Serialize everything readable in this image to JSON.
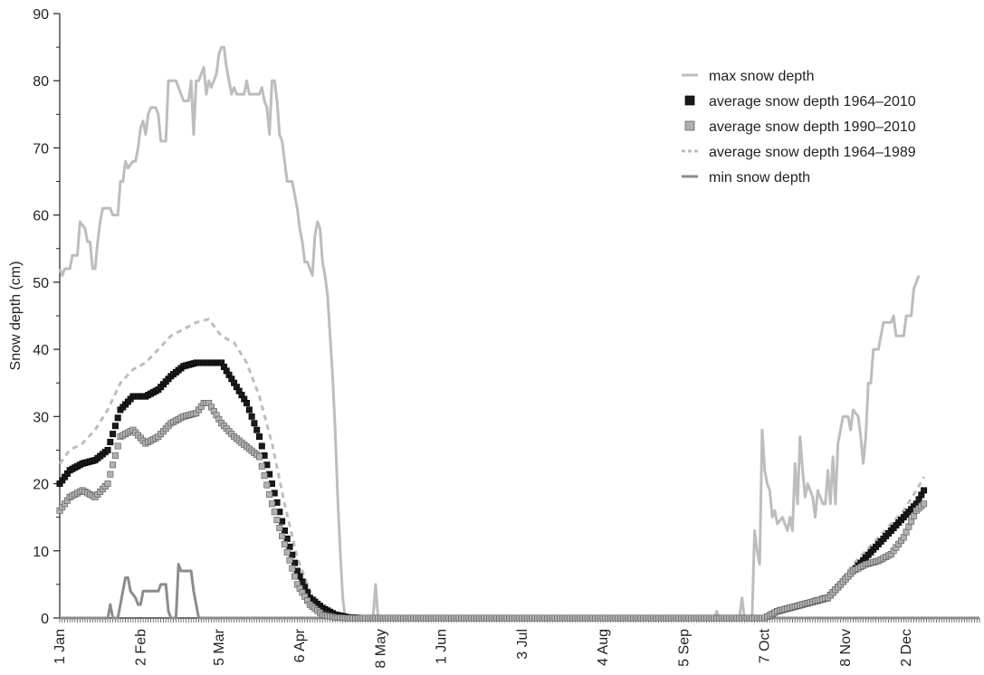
{
  "chart_data": {
    "type": "line",
    "title": "",
    "xlabel": "",
    "ylabel": "Snow depth (cm)",
    "x_unit": "day of year",
    "xlim": [
      1,
      365
    ],
    "ylim": [
      0,
      90
    ],
    "y_ticks": [
      0,
      10,
      20,
      30,
      40,
      50,
      60,
      70,
      80,
      90
    ],
    "x_ticks": [
      {
        "day": 1,
        "label": "1 Jan"
      },
      {
        "day": 33,
        "label": "2 Feb"
      },
      {
        "day": 64,
        "label": "5 Mar"
      },
      {
        "day": 96,
        "label": "6 Apr"
      },
      {
        "day": 128,
        "label": "8 May"
      },
      {
        "day": 152,
        "label": "1 Jun"
      },
      {
        "day": 184,
        "label": "3 Jul"
      },
      {
        "day": 216,
        "label": "4 Aug"
      },
      {
        "day": 248,
        "label": "5 Sep"
      },
      {
        "day": 280,
        "label": "7 Oct"
      },
      {
        "day": 312,
        "label": "8 Nov"
      },
      {
        "day": 336,
        "label": "2 Dec"
      }
    ],
    "legend_position": "top-right",
    "series": [
      {
        "name": "max snow depth",
        "style": "line",
        "color": "#bdbdbd",
        "points": [
          [
            1,
            52
          ],
          [
            2,
            51
          ],
          [
            3,
            52
          ],
          [
            5,
            52
          ],
          [
            6,
            54
          ],
          [
            8,
            54
          ],
          [
            9,
            59
          ],
          [
            11,
            58
          ],
          [
            12,
            56
          ],
          [
            13,
            56
          ],
          [
            14,
            52
          ],
          [
            15,
            52
          ],
          [
            16,
            56
          ],
          [
            17,
            59
          ],
          [
            18,
            61
          ],
          [
            21,
            61
          ],
          [
            22,
            60
          ],
          [
            24,
            60
          ],
          [
            25,
            65
          ],
          [
            26,
            65
          ],
          [
            27,
            68
          ],
          [
            28,
            67
          ],
          [
            30,
            68
          ],
          [
            31,
            68
          ],
          [
            32,
            70
          ],
          [
            33,
            73
          ],
          [
            34,
            74
          ],
          [
            35,
            72
          ],
          [
            36,
            75
          ],
          [
            37,
            76
          ],
          [
            39,
            76
          ],
          [
            40,
            75
          ],
          [
            41,
            71
          ],
          [
            43,
            71
          ],
          [
            44,
            80
          ],
          [
            47,
            80
          ],
          [
            48,
            79
          ],
          [
            49,
            78
          ],
          [
            50,
            77
          ],
          [
            52,
            77
          ],
          [
            53,
            80
          ],
          [
            54,
            72
          ],
          [
            55,
            80
          ],
          [
            56,
            80
          ],
          [
            57,
            81
          ],
          [
            58,
            82
          ],
          [
            59,
            78
          ],
          [
            60,
            80
          ],
          [
            61,
            79
          ],
          [
            62,
            80
          ],
          [
            63,
            81
          ],
          [
            64,
            84
          ],
          [
            65,
            85
          ],
          [
            66,
            85
          ],
          [
            67,
            82
          ],
          [
            68,
            80
          ],
          [
            69,
            78
          ],
          [
            70,
            79
          ],
          [
            71,
            78
          ],
          [
            74,
            78
          ],
          [
            75,
            80
          ],
          [
            76,
            78
          ],
          [
            80,
            78
          ],
          [
            81,
            79
          ],
          [
            82,
            77
          ],
          [
            83,
            76
          ],
          [
            84,
            72
          ],
          [
            85,
            80
          ],
          [
            86,
            80
          ],
          [
            87,
            77
          ],
          [
            88,
            72
          ],
          [
            89,
            71
          ],
          [
            90,
            68
          ],
          [
            91,
            65
          ],
          [
            93,
            65
          ],
          [
            94,
            63
          ],
          [
            95,
            61
          ],
          [
            96,
            58
          ],
          [
            97,
            56
          ],
          [
            98,
            53
          ],
          [
            99,
            53
          ],
          [
            100,
            52
          ],
          [
            101,
            51
          ],
          [
            102,
            57
          ],
          [
            103,
            59
          ],
          [
            104,
            58
          ],
          [
            105,
            53
          ],
          [
            106,
            51
          ],
          [
            107,
            48
          ],
          [
            108,
            42
          ],
          [
            109,
            36
          ],
          [
            110,
            28
          ],
          [
            111,
            18
          ],
          [
            112,
            10
          ],
          [
            113,
            3
          ],
          [
            114,
            0
          ],
          [
            125,
            0
          ],
          [
            126,
            5
          ],
          [
            127,
            0
          ],
          [
            260,
            0
          ],
          [
            261,
            1
          ],
          [
            262,
            0
          ],
          [
            270,
            0
          ],
          [
            271,
            3
          ],
          [
            272,
            0
          ],
          [
            275,
            0
          ],
          [
            276,
            13
          ],
          [
            277,
            10
          ],
          [
            278,
            8
          ],
          [
            279,
            28
          ],
          [
            280,
            22
          ],
          [
            281,
            20
          ],
          [
            282,
            19
          ],
          [
            283,
            15
          ],
          [
            284,
            16
          ],
          [
            285,
            14
          ],
          [
            287,
            15
          ],
          [
            288,
            14
          ],
          [
            289,
            13
          ],
          [
            290,
            15
          ],
          [
            291,
            13
          ],
          [
            292,
            23
          ],
          [
            293,
            17
          ],
          [
            294,
            27
          ],
          [
            295,
            22
          ],
          [
            296,
            18
          ],
          [
            297,
            20
          ],
          [
            298,
            19
          ],
          [
            299,
            18
          ],
          [
            300,
            15
          ],
          [
            301,
            19
          ],
          [
            302,
            18
          ],
          [
            303,
            17
          ],
          [
            304,
            17
          ],
          [
            305,
            22
          ],
          [
            306,
            17
          ],
          [
            307,
            24
          ],
          [
            308,
            17
          ],
          [
            309,
            26
          ],
          [
            310,
            28
          ],
          [
            311,
            30
          ],
          [
            313,
            30
          ],
          [
            314,
            28
          ],
          [
            315,
            31
          ],
          [
            317,
            30
          ],
          [
            318,
            27
          ],
          [
            319,
            23
          ],
          [
            320,
            27
          ],
          [
            321,
            35
          ],
          [
            322,
            35
          ],
          [
            323,
            40
          ],
          [
            325,
            40
          ],
          [
            326,
            42
          ],
          [
            327,
            44
          ],
          [
            330,
            44
          ],
          [
            331,
            45
          ],
          [
            332,
            42
          ],
          [
            335,
            42
          ],
          [
            336,
            45
          ],
          [
            338,
            45
          ],
          [
            339,
            49
          ],
          [
            341,
            51
          ]
        ]
      },
      {
        "name": "average snow depth 1964–2010",
        "style": "square-markers",
        "color": "#1a1a1a",
        "points": [
          [
            1,
            20
          ],
          [
            5,
            22
          ],
          [
            10,
            23
          ],
          [
            15,
            23.5
          ],
          [
            20,
            25
          ],
          [
            25,
            31
          ],
          [
            30,
            33
          ],
          [
            35,
            33
          ],
          [
            40,
            34
          ],
          [
            45,
            36
          ],
          [
            50,
            37.5
          ],
          [
            55,
            38
          ],
          [
            60,
            38
          ],
          [
            65,
            38
          ],
          [
            70,
            35
          ],
          [
            75,
            32
          ],
          [
            80,
            27
          ],
          [
            85,
            20
          ],
          [
            90,
            13
          ],
          [
            95,
            7
          ],
          [
            100,
            3
          ],
          [
            105,
            1.5
          ],
          [
            110,
            0.5
          ],
          [
            115,
            0.1
          ],
          [
            120,
            0
          ],
          [
            280,
            0
          ],
          [
            285,
            1
          ],
          [
            290,
            1.5
          ],
          [
            295,
            2
          ],
          [
            300,
            2.5
          ],
          [
            305,
            3
          ],
          [
            310,
            5
          ],
          [
            315,
            7
          ],
          [
            320,
            9
          ],
          [
            325,
            11
          ],
          [
            330,
            13
          ],
          [
            335,
            15
          ],
          [
            340,
            17
          ],
          [
            343,
            19
          ]
        ]
      },
      {
        "name": "average snow depth 1990–2010",
        "style": "square-markers",
        "color": "#b0b0b0",
        "points": [
          [
            1,
            16
          ],
          [
            5,
            18
          ],
          [
            10,
            19
          ],
          [
            15,
            18
          ],
          [
            20,
            20
          ],
          [
            25,
            27
          ],
          [
            30,
            28
          ],
          [
            35,
            26
          ],
          [
            40,
            27
          ],
          [
            45,
            29
          ],
          [
            50,
            30
          ],
          [
            55,
            30.5
          ],
          [
            58,
            32
          ],
          [
            60,
            32
          ],
          [
            65,
            29
          ],
          [
            70,
            27
          ],
          [
            75,
            25.5
          ],
          [
            80,
            24
          ],
          [
            85,
            17
          ],
          [
            90,
            11
          ],
          [
            95,
            5
          ],
          [
            100,
            2
          ],
          [
            105,
            0.5
          ],
          [
            110,
            0.1
          ],
          [
            115,
            0
          ],
          [
            280,
            0
          ],
          [
            285,
            1
          ],
          [
            290,
            1.5
          ],
          [
            295,
            2
          ],
          [
            300,
            2.5
          ],
          [
            305,
            3
          ],
          [
            310,
            5
          ],
          [
            315,
            7
          ],
          [
            320,
            8
          ],
          [
            325,
            8.5
          ],
          [
            330,
            9.5
          ],
          [
            335,
            12
          ],
          [
            340,
            16
          ],
          [
            343,
            17
          ]
        ]
      },
      {
        "name": "average snow depth 1964–1989",
        "style": "dashed-line",
        "color": "#bdbdbd",
        "points": [
          [
            1,
            23
          ],
          [
            5,
            25
          ],
          [
            10,
            26
          ],
          [
            15,
            28
          ],
          [
            20,
            31
          ],
          [
            25,
            35
          ],
          [
            30,
            37
          ],
          [
            35,
            38
          ],
          [
            40,
            40
          ],
          [
            45,
            42
          ],
          [
            50,
            43
          ],
          [
            55,
            44
          ],
          [
            60,
            44.5
          ],
          [
            65,
            42
          ],
          [
            70,
            41
          ],
          [
            75,
            38
          ],
          [
            80,
            33
          ],
          [
            85,
            26
          ],
          [
            90,
            17
          ],
          [
            95,
            9
          ],
          [
            100,
            4
          ],
          [
            105,
            1.5
          ],
          [
            110,
            0.5
          ],
          [
            115,
            0
          ],
          [
            280,
            0
          ],
          [
            285,
            1
          ],
          [
            290,
            1.5
          ],
          [
            295,
            2
          ],
          [
            300,
            3
          ],
          [
            305,
            3.5
          ],
          [
            310,
            5.5
          ],
          [
            315,
            8
          ],
          [
            320,
            10
          ],
          [
            325,
            12
          ],
          [
            330,
            14
          ],
          [
            335,
            16
          ],
          [
            340,
            19
          ],
          [
            343,
            21
          ]
        ]
      },
      {
        "name": "min snow depth",
        "style": "line",
        "color": "#8c8c8c",
        "points": [
          [
            1,
            0
          ],
          [
            20,
            0
          ],
          [
            21,
            2
          ],
          [
            22,
            0
          ],
          [
            24,
            0
          ],
          [
            25,
            2
          ],
          [
            26,
            4
          ],
          [
            27,
            6
          ],
          [
            28,
            6
          ],
          [
            29,
            4
          ],
          [
            31,
            3
          ],
          [
            32,
            2
          ],
          [
            33,
            2
          ],
          [
            34,
            4
          ],
          [
            40,
            4
          ],
          [
            41,
            5
          ],
          [
            43,
            5
          ],
          [
            44,
            1
          ],
          [
            45,
            0
          ],
          [
            47,
            0
          ],
          [
            48,
            8
          ],
          [
            49,
            7
          ],
          [
            53,
            7
          ],
          [
            54,
            4
          ],
          [
            55,
            2
          ],
          [
            56,
            0
          ],
          [
            365,
            0
          ]
        ]
      }
    ]
  }
}
